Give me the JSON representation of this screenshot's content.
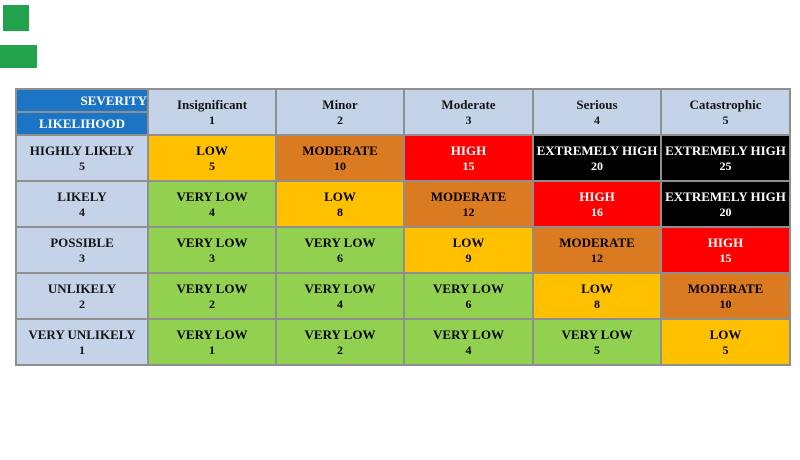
{
  "canvas": {
    "background": "#ffffff"
  },
  "markers": {
    "color": "#22A24C"
  },
  "matrix": {
    "corner_top": "SEVERITY",
    "corner_bottom": "LIKELIHOOD",
    "columns": [
      {
        "name": "Insignificant",
        "number": "1"
      },
      {
        "name": "Minor",
        "number": "2"
      },
      {
        "name": "Moderate",
        "number": "3"
      },
      {
        "name": "Serious",
        "number": "4"
      },
      {
        "name": "Catastrophic",
        "number": "5"
      }
    ],
    "rows": [
      {
        "name": "HIGHLY LIKELY",
        "number": "5",
        "cells": [
          {
            "label": "LOW",
            "score": "5",
            "level": "low"
          },
          {
            "label": "MODERATE",
            "score": "10",
            "level": "moderate"
          },
          {
            "label": "HIGH",
            "score": "15",
            "level": "high"
          },
          {
            "label": "EXTREMELY HIGH",
            "score": "20",
            "level": "extremely-high"
          },
          {
            "label": "EXTREMELY HIGH",
            "score": "25",
            "level": "extremely-high"
          }
        ]
      },
      {
        "name": "LIKELY",
        "number": "4",
        "cells": [
          {
            "label": "VERY LOW",
            "score": "4",
            "level": "very-low"
          },
          {
            "label": "LOW",
            "score": "8",
            "level": "low"
          },
          {
            "label": "MODERATE",
            "score": "12",
            "level": "moderate"
          },
          {
            "label": "HIGH",
            "score": "16",
            "level": "high"
          },
          {
            "label": "EXTREMELY HIGH",
            "score": "20",
            "level": "extremely-high"
          }
        ]
      },
      {
        "name": "POSSIBLE",
        "number": "3",
        "cells": [
          {
            "label": "VERY LOW",
            "score": "3",
            "level": "very-low"
          },
          {
            "label": "VERY LOW",
            "score": "6",
            "level": "very-low"
          },
          {
            "label": "LOW",
            "score": "9",
            "level": "low"
          },
          {
            "label": "MODERATE",
            "score": "12",
            "level": "moderate"
          },
          {
            "label": "HIGH",
            "score": "15",
            "level": "high"
          }
        ]
      },
      {
        "name": "UNLIKELY",
        "number": "2",
        "cells": [
          {
            "label": "VERY LOW",
            "score": "2",
            "level": "very-low"
          },
          {
            "label": "VERY LOW",
            "score": "4",
            "level": "very-low"
          },
          {
            "label": "VERY LOW",
            "score": "6",
            "level": "very-low"
          },
          {
            "label": "LOW",
            "score": "8",
            "level": "low"
          },
          {
            "label": "MODERATE",
            "score": "10",
            "level": "moderate"
          }
        ]
      },
      {
        "name": "VERY UNLIKELY",
        "number": "1",
        "cells": [
          {
            "label": "VERY LOW",
            "score": "1",
            "level": "very-low"
          },
          {
            "label": "VERY LOW",
            "score": "2",
            "level": "very-low"
          },
          {
            "label": "VERY LOW",
            "score": "4",
            "level": "very-low"
          },
          {
            "label": "VERY LOW",
            "score": "5",
            "level": "very-low"
          },
          {
            "label": "LOW",
            "score": "5",
            "level": "low"
          }
        ]
      }
    ]
  },
  "header_colors": {
    "corner_blue": "#1B74C4",
    "header_fill": "#C4D3E8",
    "header_text": "#141414"
  },
  "level_colors": {
    "very-low": {
      "bg": "#92D050",
      "text": "#000000"
    },
    "low": {
      "bg": "#FFC000",
      "text": "#000000"
    },
    "moderate": {
      "bg": "#DB7B21",
      "text": "#000000"
    },
    "high": {
      "bg": "#FF0000",
      "text": "#ffffff"
    },
    "extremely-high": {
      "bg": "#000000",
      "text": "#ffffff"
    }
  },
  "chart_data": {
    "type": "heatmap",
    "x_axis_label": "SEVERITY",
    "y_axis_label": "LIKELIHOOD",
    "x_categories": [
      "Insignificant 1",
      "Minor 2",
      "Moderate 3",
      "Serious 4",
      "Catastrophic 5"
    ],
    "y_categories": [
      "HIGHLY LIKELY 5",
      "LIKELY 4",
      "POSSIBLE 3",
      "UNLIKELY 2",
      "VERY UNLIKELY 1"
    ],
    "values": [
      [
        5,
        10,
        15,
        20,
        25
      ],
      [
        4,
        8,
        12,
        16,
        20
      ],
      [
        3,
        6,
        9,
        12,
        15
      ],
      [
        2,
        4,
        6,
        8,
        10
      ],
      [
        1,
        2,
        4,
        5,
        5
      ]
    ],
    "labels": [
      [
        "LOW",
        "MODERATE",
        "HIGH",
        "EXTREMELY HIGH",
        "EXTREMELY HIGH"
      ],
      [
        "VERY LOW",
        "LOW",
        "MODERATE",
        "HIGH",
        "EXTREMELY HIGH"
      ],
      [
        "VERY LOW",
        "VERY LOW",
        "LOW",
        "MODERATE",
        "HIGH"
      ],
      [
        "VERY LOW",
        "VERY LOW",
        "VERY LOW",
        "LOW",
        "MODERATE"
      ],
      [
        "VERY LOW",
        "VERY LOW",
        "VERY LOW",
        "VERY LOW",
        "LOW"
      ]
    ],
    "legend": [
      "VERY LOW",
      "LOW",
      "MODERATE",
      "HIGH",
      "EXTREMELY HIGH"
    ],
    "grid": true,
    "legend_position": "none"
  }
}
